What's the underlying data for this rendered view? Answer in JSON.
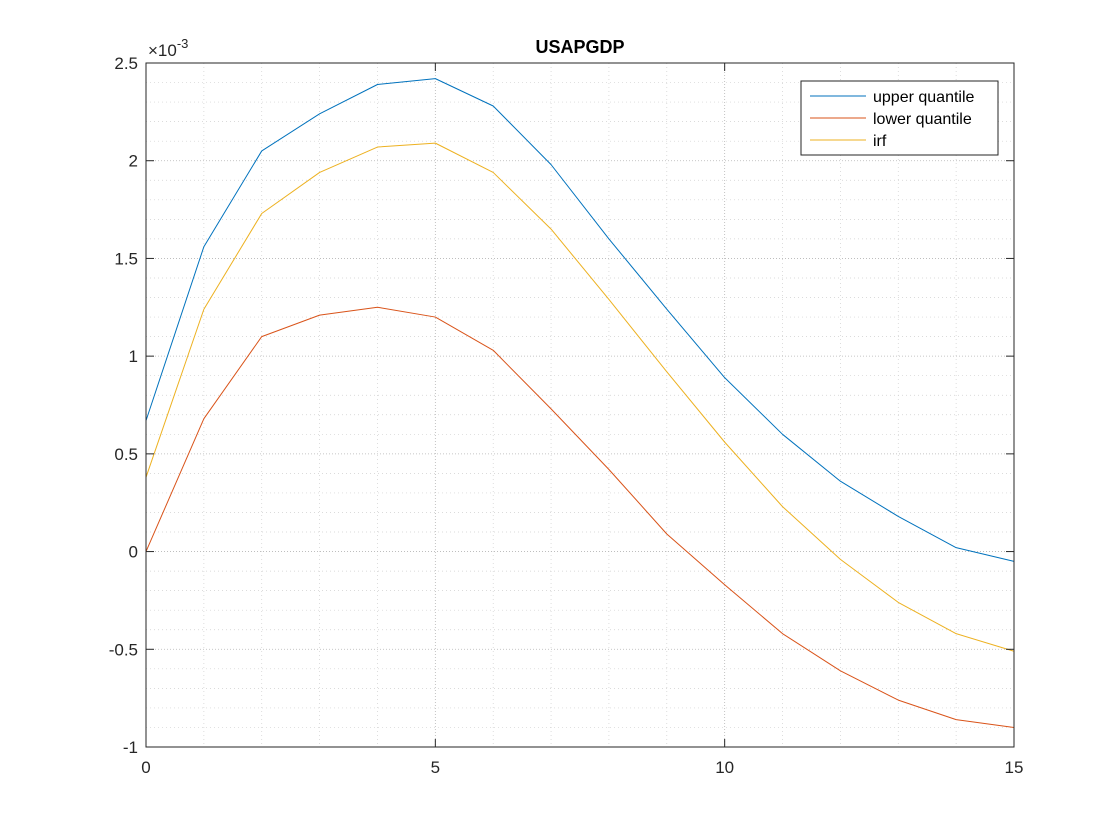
{
  "chart_data": {
    "type": "line",
    "title": "USAPGDP",
    "xlabel": "",
    "ylabel": "",
    "exponent_prefix": "×10",
    "exponent_power": "-3",
    "scale": 0.001,
    "xlim": [
      0,
      15
    ],
    "ylim": [
      -1,
      2.5
    ],
    "grid": true,
    "minor_grid": true,
    "legend_position": "top-right",
    "x": [
      0,
      1,
      2,
      3,
      4,
      5,
      6,
      7,
      8,
      9,
      10,
      11,
      12,
      13,
      14,
      15
    ],
    "x_ticks": [
      0,
      5,
      10,
      15
    ],
    "x_tick_labels": [
      "0",
      "5",
      "10",
      "15"
    ],
    "y_ticks": [
      -1,
      -0.5,
      0,
      0.5,
      1,
      1.5,
      2,
      2.5
    ],
    "y_tick_labels": [
      "-1",
      "-0.5",
      "0",
      "0.5",
      "1",
      "1.5",
      "2",
      "2.5"
    ],
    "series": [
      {
        "name": "upper quantile",
        "color": "#0072BD",
        "values": [
          0.67,
          1.56,
          2.05,
          2.24,
          2.39,
          2.42,
          2.28,
          1.98,
          1.6,
          1.24,
          0.89,
          0.6,
          0.36,
          0.18,
          0.02,
          -0.05
        ]
      },
      {
        "name": "lower quantile",
        "color": "#D95319",
        "values": [
          0.0,
          0.68,
          1.1,
          1.21,
          1.25,
          1.2,
          1.03,
          0.73,
          0.42,
          0.09,
          -0.17,
          -0.42,
          -0.61,
          -0.76,
          -0.86,
          -0.9
        ]
      },
      {
        "name": "irf",
        "color": "#EDB120",
        "values": [
          0.38,
          1.24,
          1.73,
          1.94,
          2.07,
          2.09,
          1.94,
          1.65,
          1.29,
          0.92,
          0.56,
          0.23,
          -0.04,
          -0.26,
          -0.42,
          -0.51
        ]
      }
    ]
  }
}
